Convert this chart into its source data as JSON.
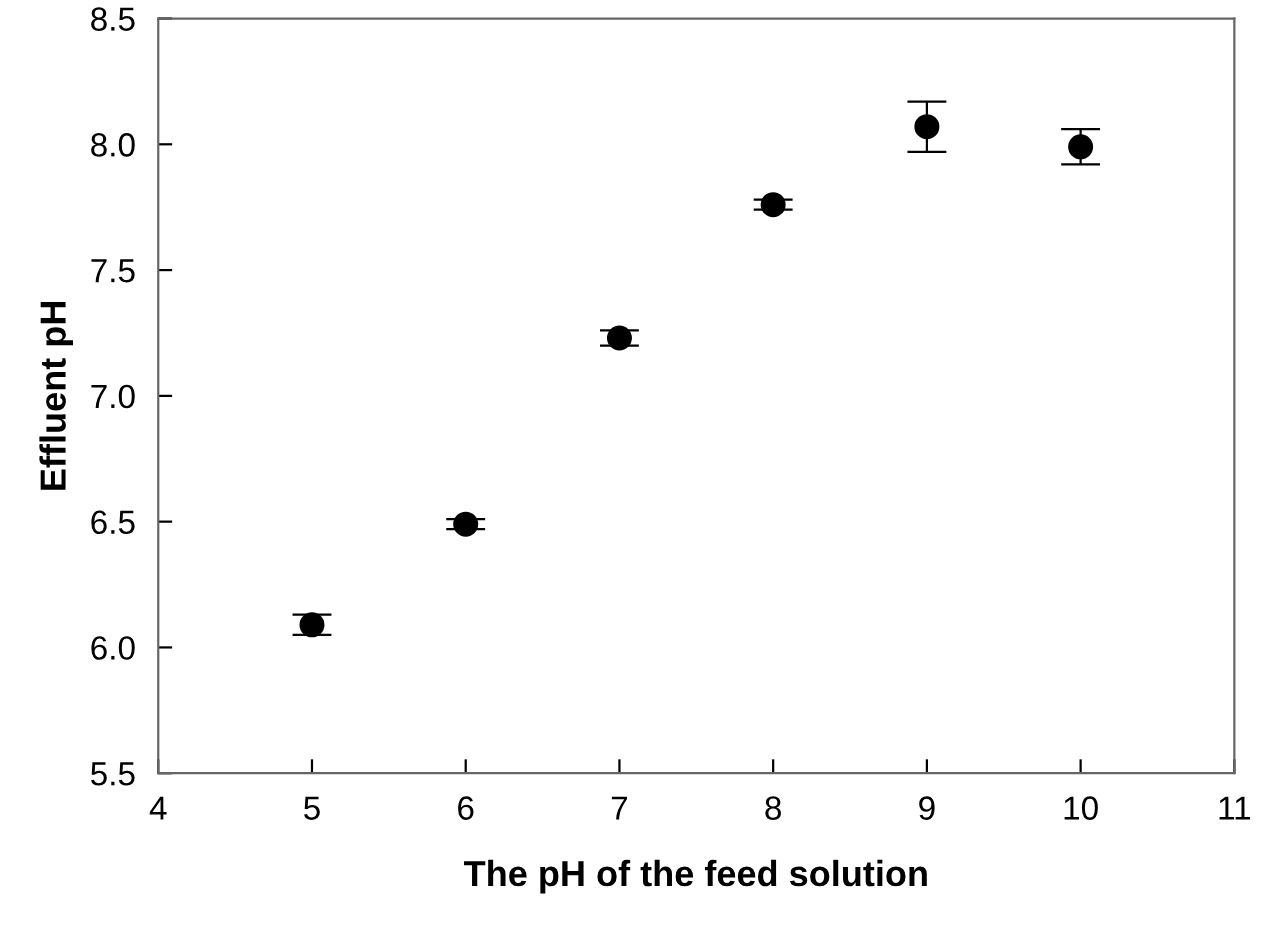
{
  "chart_data": {
    "type": "scatter",
    "xlabel": "The pH of the feed solution",
    "ylabel": "Effluent pH",
    "x": [
      5,
      6,
      7,
      8,
      9,
      10
    ],
    "values": [
      6.09,
      6.49,
      7.23,
      7.76,
      8.07,
      7.99
    ],
    "errors": [
      0.04,
      0.02,
      0.03,
      0.02,
      0.1,
      0.07
    ],
    "color": "#000000",
    "marker": "circle",
    "xlim": [
      4,
      11
    ],
    "xticks": [
      4,
      5,
      6,
      7,
      8,
      9,
      10,
      11
    ],
    "ylim": [
      5.5,
      8.5
    ],
    "yticks": [
      {
        "value": 5.5,
        "label": "5.5"
      },
      {
        "value": 6.0,
        "label": "6.0"
      },
      {
        "value": 6.5,
        "label": "6.5"
      },
      {
        "value": 7.0,
        "label": "7.0"
      },
      {
        "value": 7.5,
        "label": "7.5"
      },
      {
        "value": 8.0,
        "label": "8.0"
      },
      {
        "value": 8.5,
        "label": "8.5"
      }
    ],
    "grid": false
  }
}
